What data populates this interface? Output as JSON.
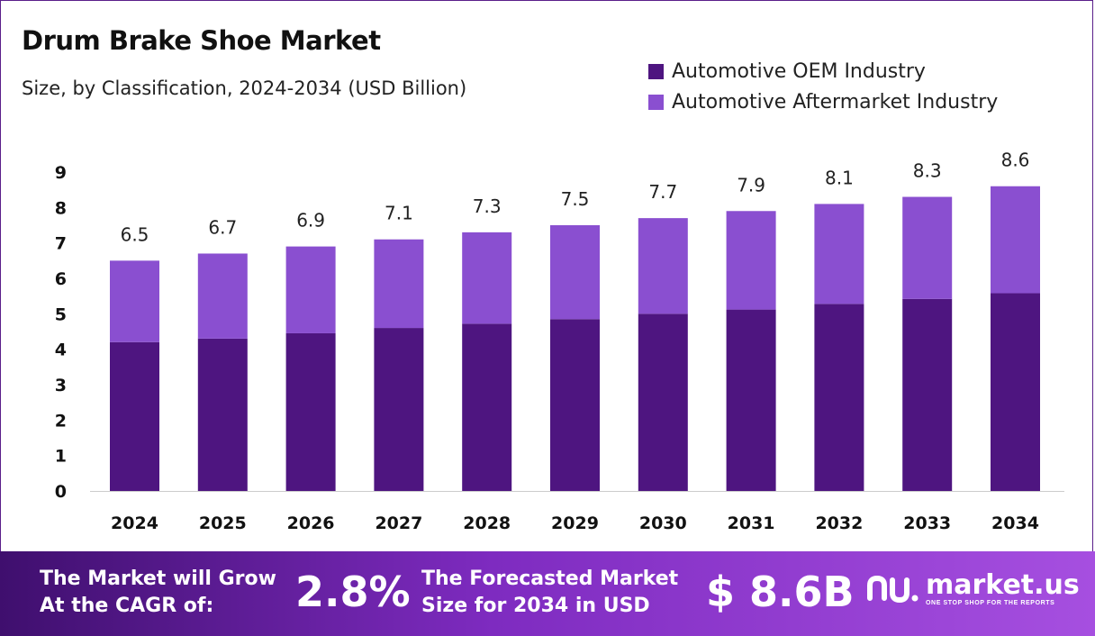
{
  "header": {
    "title": "Drum Brake Shoe Market",
    "subtitle": "Size, by Classification, 2024-2034 (USD Billion)"
  },
  "colors": {
    "oem": "#4e1580",
    "aftermarket": "#8a4fd0",
    "axis": "#cccccc",
    "text": "#111111"
  },
  "chart_data": {
    "type": "bar",
    "stacked": true,
    "categories": [
      "2024",
      "2025",
      "2026",
      "2027",
      "2028",
      "2029",
      "2030",
      "2031",
      "2032",
      "2033",
      "2034"
    ],
    "series": [
      {
        "name": "Automotive OEM Industry",
        "values": [
          4.2,
          4.3,
          4.45,
          4.6,
          4.72,
          4.85,
          5.0,
          5.12,
          5.28,
          5.42,
          5.58
        ]
      },
      {
        "name": "Automotive Aftermarket Industry",
        "values": [
          2.3,
          2.4,
          2.45,
          2.5,
          2.58,
          2.65,
          2.7,
          2.78,
          2.82,
          2.88,
          3.02
        ]
      }
    ],
    "totals": [
      "6.5",
      "6.7",
      "6.9",
      "7.1",
      "7.3",
      "7.5",
      "7.7",
      "7.9",
      "8.1",
      "8.3",
      "8.6"
    ],
    "yticks": [
      0,
      1,
      2,
      3,
      4,
      5,
      6,
      7,
      8,
      9
    ],
    "ylim": [
      0,
      9
    ],
    "grid": false,
    "legend_position": "top-right"
  },
  "footer": {
    "cagr_line1": "The Market will Grow",
    "cagr_line2": "At the CAGR of:",
    "cagr_value": "2.8%",
    "forecast_line1": "The Forecasted Market",
    "forecast_line2": "Size for 2034 in USD",
    "forecast_value": "$ 8.6B",
    "brand_name": "market.us",
    "brand_tagline": "ONE STOP SHOP FOR THE REPORTS"
  }
}
